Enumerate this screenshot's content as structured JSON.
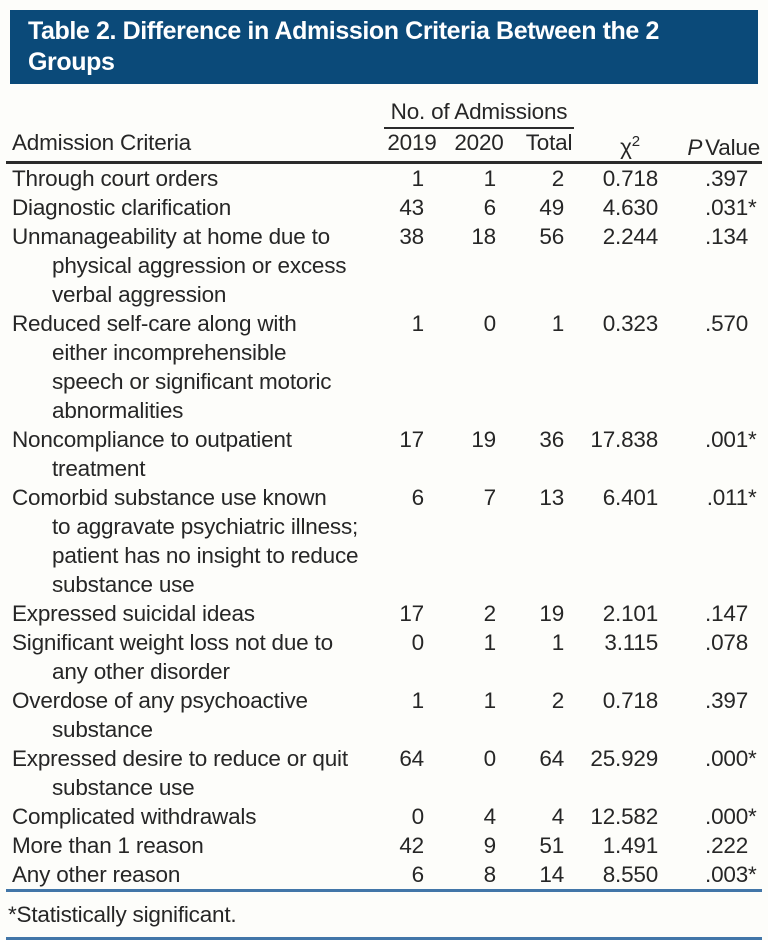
{
  "colors": {
    "title_bg": "#0b4a79",
    "rule_blue": "#4276a8",
    "rule_dark": "#2b2b2b",
    "text": "#262626",
    "page_bg": "#fdfdfa"
  },
  "title": {
    "text": "Table 2. Difference in Admission Criteria Between the 2 Groups"
  },
  "table": {
    "col_headers": {
      "criteria": "Admission Criteria",
      "spanner": "No. of Admissions",
      "y2019": "2019",
      "y2020": "2020",
      "total": "Total",
      "chi_symbol": "χ",
      "chi_sup": "2",
      "p_italic": "P",
      "p_rest": "Value"
    },
    "sig_marker": "*",
    "rows": [
      {
        "criteria": "Through court orders",
        "lines": [
          "Through court orders"
        ],
        "y2019": "1",
        "y2020": "1",
        "total": "2",
        "chi": "0.718",
        "p": ".397",
        "sig": false
      },
      {
        "criteria": "Diagnostic clarification",
        "lines": [
          "Diagnostic clarification"
        ],
        "y2019": "43",
        "y2020": "6",
        "total": "49",
        "chi": "4.630",
        "p": ".031",
        "sig": true
      },
      {
        "criteria": "Unmanageability at home due to physical aggression or excess verbal aggression",
        "lines": [
          "Unmanageability at home due to",
          "physical aggression or excess",
          "verbal aggression"
        ],
        "y2019": "38",
        "y2020": "18",
        "total": "56",
        "chi": "2.244",
        "p": ".134",
        "sig": false
      },
      {
        "criteria": "Reduced self-care along with either incomprehensible speech or significant motoric abnormalities",
        "lines": [
          "Reduced self-care along with",
          "either incomprehensible",
          "speech or significant motoric",
          "abnormalities"
        ],
        "y2019": "1",
        "y2020": "0",
        "total": "1",
        "chi": "0.323",
        "p": ".570",
        "sig": false
      },
      {
        "criteria": "Noncompliance to outpatient treatment",
        "lines": [
          "Noncompliance to outpatient",
          "treatment"
        ],
        "y2019": "17",
        "y2020": "19",
        "total": "36",
        "chi": "17.838",
        "p": ".001",
        "sig": true
      },
      {
        "criteria": "Comorbid substance use known to aggravate psychiatric illness; patient has no insight to reduce substance use",
        "lines": [
          "Comorbid substance use known",
          "to aggravate psychiatric illness;",
          "patient has no insight to reduce",
          "substance use"
        ],
        "y2019": "6",
        "y2020": "7",
        "total": "13",
        "chi": "6.401",
        "p": ".011",
        "sig": true
      },
      {
        "criteria": "Expressed suicidal ideas",
        "lines": [
          "Expressed suicidal ideas"
        ],
        "y2019": "17",
        "y2020": "2",
        "total": "19",
        "chi": "2.101",
        "p": ".147",
        "sig": false
      },
      {
        "criteria": "Significant weight loss not due to any other disorder",
        "lines": [
          "Significant weight loss not due to",
          "any other disorder"
        ],
        "y2019": "0",
        "y2020": "1",
        "total": "1",
        "chi": "3.115",
        "p": ".078",
        "sig": false
      },
      {
        "criteria": "Overdose of any psychoactive substance",
        "lines": [
          "Overdose of any psychoactive",
          "substance"
        ],
        "y2019": "1",
        "y2020": "1",
        "total": "2",
        "chi": "0.718",
        "p": ".397",
        "sig": false
      },
      {
        "criteria": "Expressed desire to reduce or quit substance use",
        "lines": [
          "Expressed desire to reduce or quit",
          "substance use"
        ],
        "y2019": "64",
        "y2020": "0",
        "total": "64",
        "chi": "25.929",
        "p": ".000",
        "sig": true
      },
      {
        "criteria": "Complicated withdrawals",
        "lines": [
          "Complicated withdrawals"
        ],
        "y2019": "0",
        "y2020": "4",
        "total": "4",
        "chi": "12.582",
        "p": ".000",
        "sig": true
      },
      {
        "criteria": "More than 1 reason",
        "lines": [
          "More than 1 reason"
        ],
        "y2019": "42",
        "y2020": "9",
        "total": "51",
        "chi": "1.491",
        "p": ".222",
        "sig": false
      },
      {
        "criteria": "Any other reason",
        "lines": [
          "Any other reason"
        ],
        "y2019": "6",
        "y2020": "8",
        "total": "14",
        "chi": "8.550",
        "p": ".003",
        "sig": true
      }
    ]
  },
  "footnote": {
    "text": "*Statistically significant."
  }
}
